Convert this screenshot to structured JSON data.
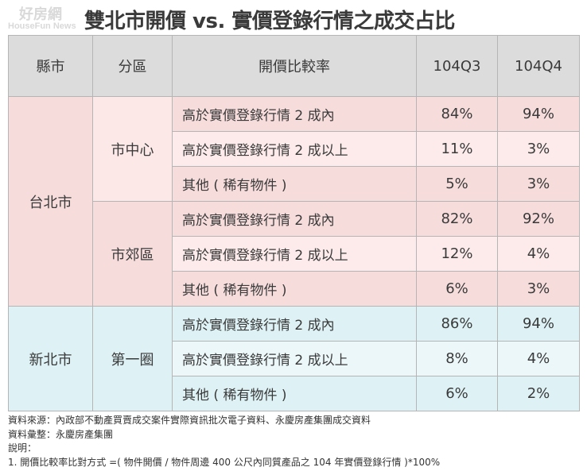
{
  "logo": {
    "line1": "好房網",
    "line2": "HouseFun News"
  },
  "title": "雙北市開價 vs. 實價登錄行情之成交占比",
  "headers": [
    "縣市",
    "分區",
    "開價比較率",
    "104Q3",
    "104Q4"
  ],
  "groups": [
    {
      "city": "台北市",
      "districts": [
        {
          "name": "市中心",
          "rows": [
            {
              "desc": "高於實價登錄行情 2 成內",
              "q3": "84%",
              "q4": "94%"
            },
            {
              "desc": "高於實價登錄行情 2 成以上",
              "q3": "11%",
              "q4": "3%"
            },
            {
              "desc": "其他 ( 稀有物件 )",
              "q3": "5%",
              "q4": "3%"
            }
          ]
        },
        {
          "name": "市郊區",
          "rows": [
            {
              "desc": "高於實價登錄行情 2 成內",
              "q3": "82%",
              "q4": "92%"
            },
            {
              "desc": "高於實價登錄行情 2 成以上",
              "q3": "12%",
              "q4": "4%"
            },
            {
              "desc": "其他 ( 稀有物件 )",
              "q3": "6%",
              "q4": "3%"
            }
          ]
        }
      ]
    },
    {
      "city": "新北市",
      "districts": [
        {
          "name": "第一圈",
          "rows": [
            {
              "desc": "高於實價登錄行情 2 成內",
              "q3": "86%",
              "q4": "94%"
            },
            {
              "desc": "高於實價登錄行情 2 成以上",
              "q3": "8%",
              "q4": "4%"
            },
            {
              "desc": "其他 ( 稀有物件 )",
              "q3": "6%",
              "q4": "2%"
            }
          ]
        }
      ]
    }
  ],
  "notes": [
    "資料來源：內政部不動產買賣成交案件實際資訊批次電子資料、永慶房產集團成交資料",
    "資料彙整：永慶房產集團",
    "說明：",
    "1. 開價比較率比對方式 =( 物件開價 / 物件周邊 400 公尺內同質產品之 104 年實價登錄行情 )*100%"
  ],
  "colors": {
    "header": "#dcdcdc",
    "taipei": "#f7dcdc",
    "newtaipei": "#def2f5"
  }
}
